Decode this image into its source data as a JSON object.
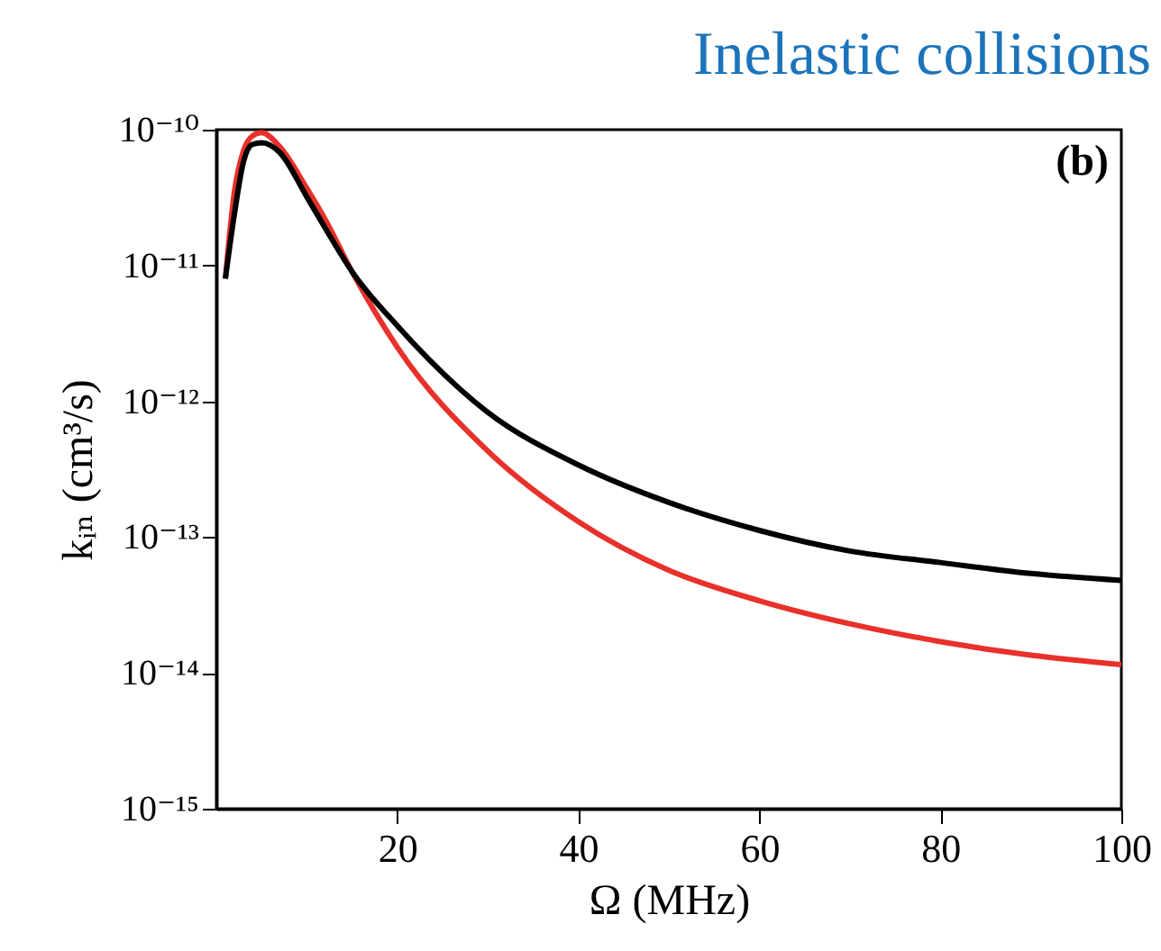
{
  "chart_data": {
    "type": "line",
    "title": "Inelastic collisions",
    "xlabel": "Ω (MHz)",
    "ylabel": "kᵢₙ (cm³/s)",
    "annotations": [
      "(b)"
    ],
    "log": "y",
    "xlim": [
      0,
      100
    ],
    "xticks": [
      20,
      40,
      60,
      80,
      100
    ],
    "ylim": [
      1e-15,
      1e-10
    ],
    "yticks": [
      {
        "value": 1e-15,
        "label": "10⁻¹⁵"
      },
      {
        "value": 1e-14,
        "label": "10⁻¹⁴"
      },
      {
        "value": 1e-13,
        "label": "10⁻¹³"
      },
      {
        "value": 1e-12,
        "label": "10⁻¹²"
      },
      {
        "value": 1e-11,
        "label": "10⁻¹¹"
      },
      {
        "value": 1e-10,
        "label": "10⁻¹⁰"
      }
    ],
    "x": [
      1,
      2,
      3,
      4,
      5,
      7,
      10,
      12,
      15,
      20,
      30,
      40,
      50,
      60,
      70,
      80,
      90,
      100
    ],
    "series": [
      {
        "color": "#e8312a",
        "values": [
          8e-12,
          3.5e-11,
          7e-11,
          9e-11,
          9.5e-11,
          7.5e-11,
          3.7e-11,
          2.2e-11,
          9e-12,
          2.5e-12,
          4.3e-13,
          1.3e-13,
          5.7e-14,
          3.4e-14,
          2.3e-14,
          1.7e-14,
          1.35e-14,
          1.15e-14
        ]
      },
      {
        "color": "#000000",
        "values": [
          8e-12,
          2.4e-11,
          5.8e-11,
          7.8e-11,
          8e-11,
          6.8e-11,
          3.2e-11,
          1.9e-11,
          9e-12,
          3.6e-12,
          8.3e-13,
          3.4e-13,
          1.8e-13,
          1.12e-13,
          7.9e-14,
          6.5e-14,
          5.4e-14,
          4.8e-14
        ]
      }
    ]
  }
}
